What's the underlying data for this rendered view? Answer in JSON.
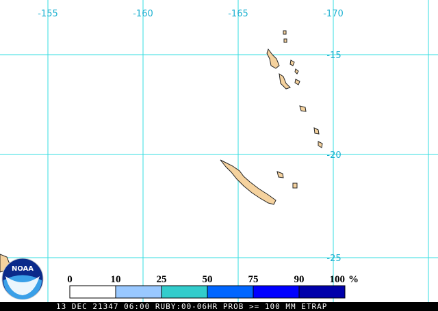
{
  "map": {
    "longitude_labels": [
      "-155",
      "-160",
      "-165",
      "-170"
    ],
    "latitude_labels": [
      "-15",
      "-20",
      "-25"
    ],
    "logo": "NOAA",
    "legend": {
      "labels": [
        "0",
        "10",
        "25",
        "50",
        "75",
        "90",
        "100"
      ],
      "unit": "%",
      "colors": [
        "#ffffff",
        "#99c8ff",
        "#33cccc",
        "#0066ff",
        "#0000ff",
        "#0000aa"
      ]
    },
    "caption": "13 DEC 21347 06:00 RUBY:00-06HR PROB >= 100 MM ETRAP"
  }
}
